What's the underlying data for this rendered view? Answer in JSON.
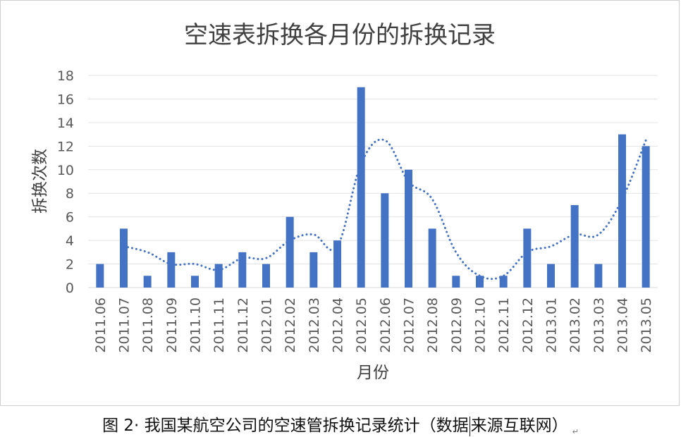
{
  "chart_data": {
    "type": "bar",
    "title": "空速表拆换各月份的拆换记录",
    "xlabel": "月份",
    "ylabel": "拆换次数",
    "ylim": [
      0,
      18
    ],
    "yticks": [
      0,
      2,
      4,
      6,
      8,
      10,
      12,
      14,
      16,
      18
    ],
    "grid": true,
    "legend": "none",
    "categories": [
      "2011.06",
      "2011.07",
      "2011.08",
      "2011.09",
      "2011.10",
      "2011.11",
      "2011.12",
      "2012.01",
      "2012.02",
      "2012.03",
      "2012.04",
      "2012.05",
      "2012.06",
      "2012.07",
      "2012.08",
      "2012.09",
      "2012.10",
      "2012.11",
      "2012.12",
      "2013.01",
      "2013.02",
      "2013.03",
      "2013.04",
      "2013.05"
    ],
    "series": [
      {
        "type": "bar",
        "values": [
          2,
          5,
          1,
          3,
          1,
          2,
          3,
          2,
          6,
          3,
          4,
          17,
          8,
          10,
          5,
          1,
          1,
          1,
          5,
          2,
          7,
          2,
          13,
          12
        ],
        "color": "#4472c4"
      },
      {
        "type": "line",
        "style": "dotted",
        "trendline": "2-period moving average",
        "values": [
          null,
          3.5,
          3,
          2,
          2,
          1.5,
          2.5,
          2.5,
          4,
          4.5,
          3.5,
          10.5,
          12.5,
          9,
          7.5,
          3,
          1,
          1,
          3,
          3.5,
          4.5,
          4.5,
          7.5,
          12.5
        ],
        "color": "#4472c4"
      }
    ]
  },
  "caption": {
    "part1": "图 2· 我国某航空公司的空速管拆换记录统计（数据",
    "part2": "来源互联网）",
    "mark": "↵"
  }
}
